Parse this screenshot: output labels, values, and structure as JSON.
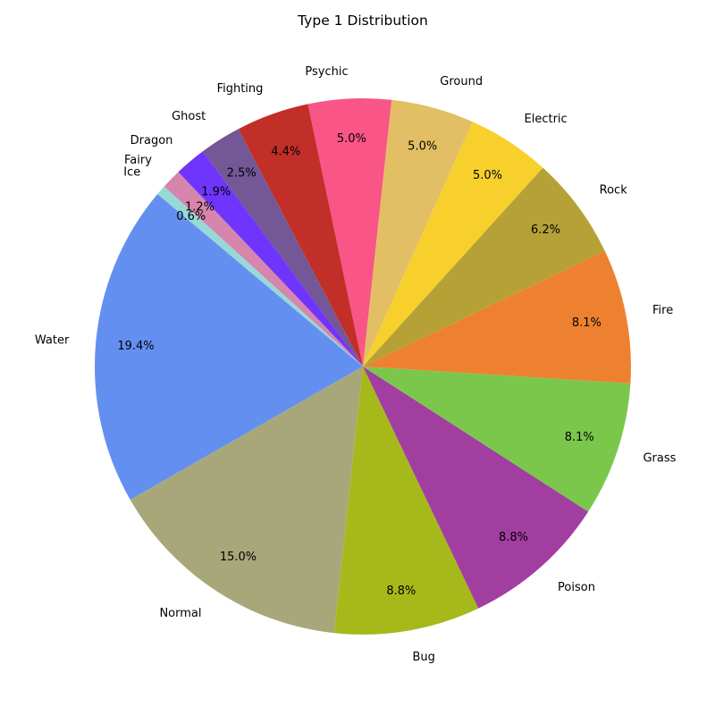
{
  "chart_data": {
    "type": "pie",
    "title": "Type 1 Distribution",
    "start_angle_deg": 140,
    "direction": "counterclockwise",
    "slices": [
      {
        "label": "Water",
        "value": 19.4,
        "pct_label": "19.4%",
        "color": "#6390F0"
      },
      {
        "label": "Normal",
        "value": 15.0,
        "pct_label": "15.0%",
        "color": "#A8A77A"
      },
      {
        "label": "Bug",
        "value": 8.8,
        "pct_label": "8.8%",
        "color": "#A6B91A"
      },
      {
        "label": "Poison",
        "value": 8.8,
        "pct_label": "8.8%",
        "color": "#A33EA1"
      },
      {
        "label": "Grass",
        "value": 8.1,
        "pct_label": "8.1%",
        "color": "#7AC74C"
      },
      {
        "label": "Fire",
        "value": 8.1,
        "pct_label": "8.1%",
        "color": "#EE8130"
      },
      {
        "label": "Rock",
        "value": 6.2,
        "pct_label": "6.2%",
        "color": "#B6A136"
      },
      {
        "label": "Electric",
        "value": 5.0,
        "pct_label": "5.0%",
        "color": "#F7D02C"
      },
      {
        "label": "Ground",
        "value": 5.0,
        "pct_label": "5.0%",
        "color": "#E2BF65"
      },
      {
        "label": "Psychic",
        "value": 5.0,
        "pct_label": "5.0%",
        "color": "#F95587"
      },
      {
        "label": "Fighting",
        "value": 4.4,
        "pct_label": "4.4%",
        "color": "#C22E28"
      },
      {
        "label": "Ghost",
        "value": 2.5,
        "pct_label": "2.5%",
        "color": "#735797"
      },
      {
        "label": "Dragon",
        "value": 1.9,
        "pct_label": "1.9%",
        "color": "#6F35FC"
      },
      {
        "label": "Fairy",
        "value": 1.2,
        "pct_label": "1.2%",
        "color": "#D685AD"
      },
      {
        "label": "Ice",
        "value": 0.6,
        "pct_label": "0.6%",
        "color": "#96D9D6"
      }
    ]
  }
}
